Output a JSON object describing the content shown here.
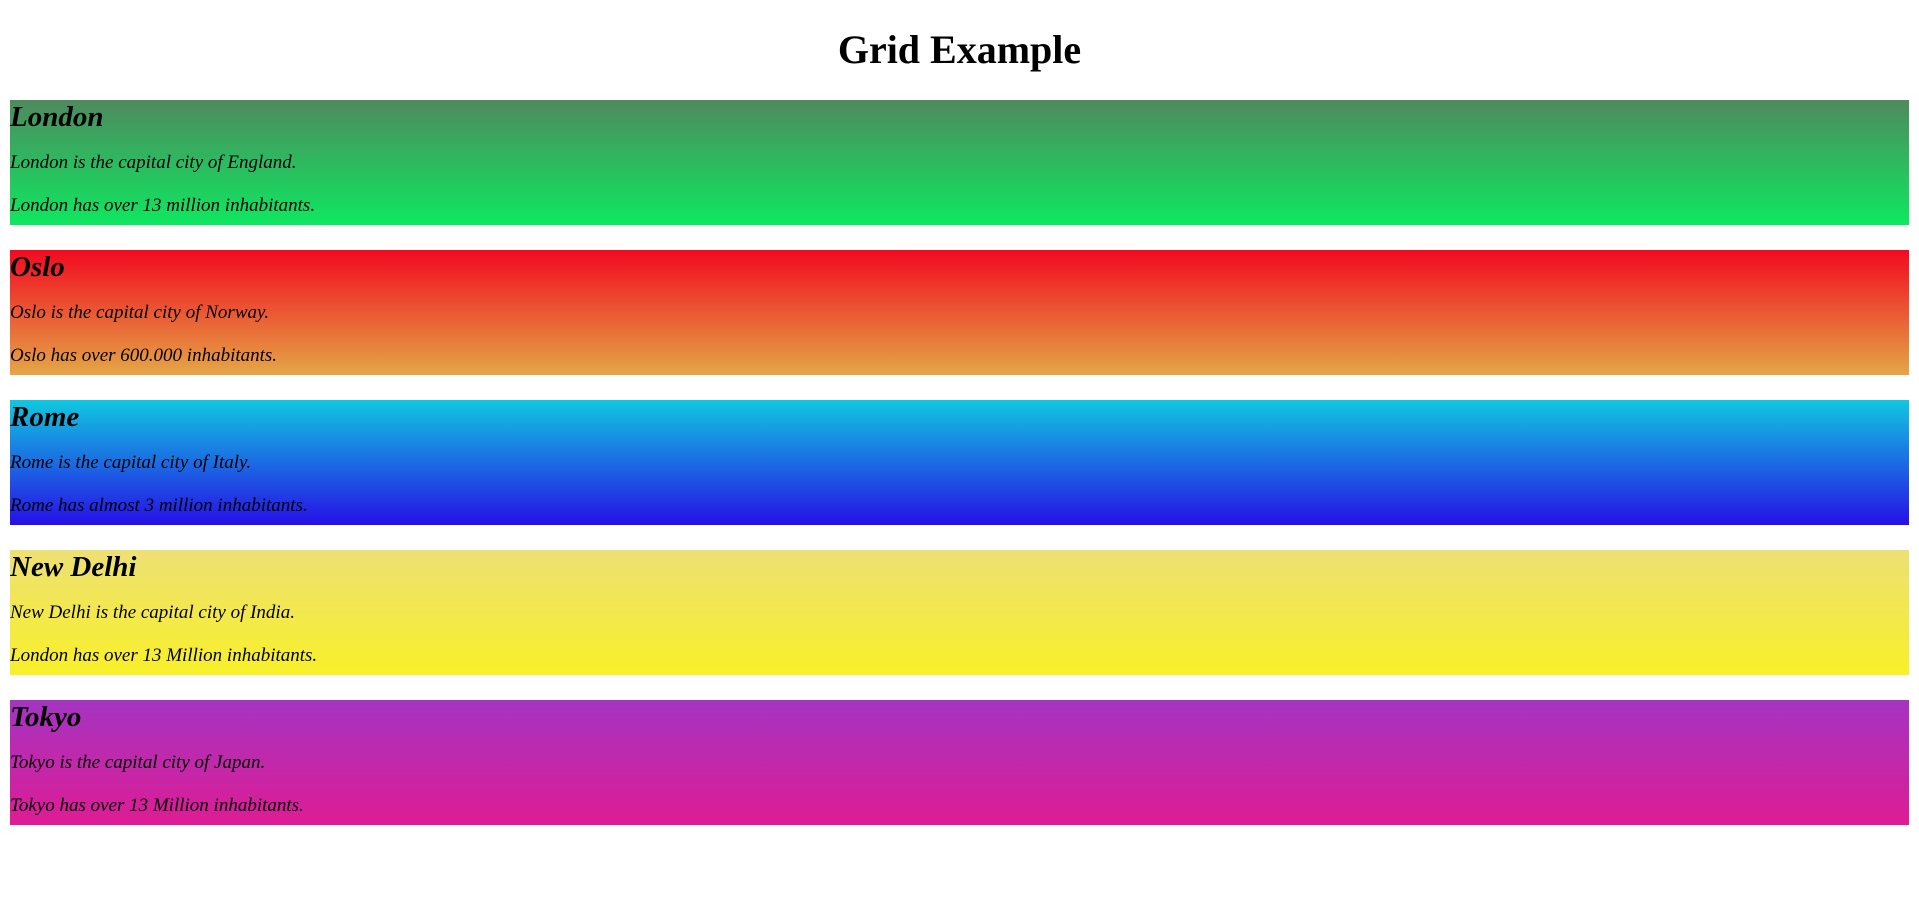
{
  "page": {
    "title": "Grid Example"
  },
  "cities": [
    {
      "name": "London",
      "line1": "London is the capital city of England.",
      "line2": "London has over 13 million inhabitants.",
      "gradient_top": "#4e8a5e",
      "gradient_bottom": "#0ee860"
    },
    {
      "name": "Oslo",
      "line1": "Oslo is the capital city of Norway.",
      "line2": "Oslo has over 600.000 inhabitants.",
      "gradient_top": "#f20a20",
      "gradient_bottom": "#e4a646"
    },
    {
      "name": "Rome",
      "line1": "Rome is the capital city of Italy.",
      "line2": "Rome has almost 3 million inhabitants.",
      "gradient_top": "#10c8e0",
      "gradient_bottom": "#2610e6"
    },
    {
      "name": "New Delhi",
      "line1": "New Delhi is the capital city of India.",
      "line2": "London has over 13 Million inhabitants.",
      "gradient_top": "#ede074",
      "gradient_bottom": "#f8f028"
    },
    {
      "name": "Tokyo",
      "line1": "Tokyo is the capital city of Japan.",
      "line2": "Tokyo has over 13 Million inhabitants.",
      "gradient_top": "#a434c2",
      "gradient_bottom": "#de1c94"
    }
  ]
}
